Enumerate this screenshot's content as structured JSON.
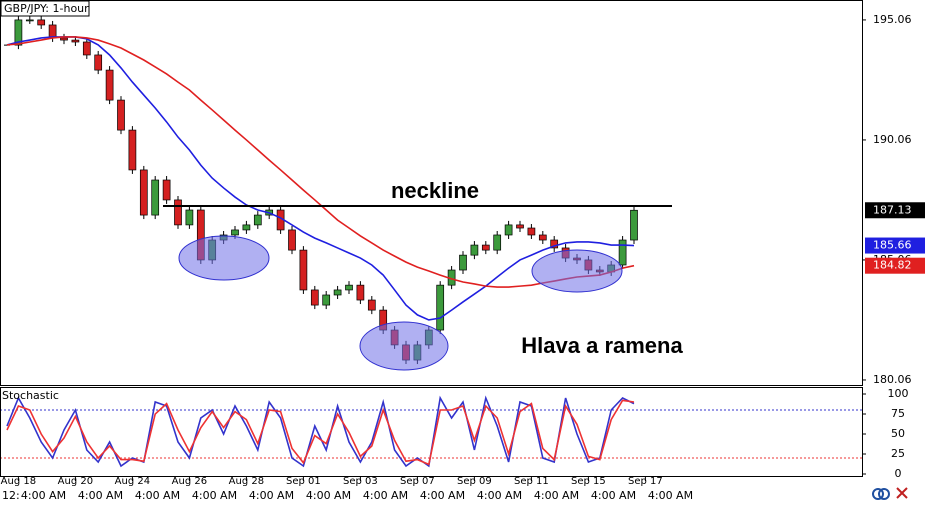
{
  "chart_data": [
    {
      "type": "candlestick",
      "title": "GBP/JPY: 1-hour",
      "categories": [
        null,
        "Aug 18",
        null,
        null,
        null,
        null,
        "Aug 20",
        null,
        null,
        null,
        null,
        "Aug 24",
        null,
        null,
        null,
        null,
        "Aug 26",
        null,
        null,
        null,
        null,
        "Aug 28",
        null,
        null,
        null,
        null,
        "Sep 01",
        null,
        null,
        null,
        null,
        "Sep 03",
        null,
        null,
        null,
        null,
        "Sep 07",
        null,
        null,
        null,
        null,
        "Sep 09",
        null,
        null,
        null,
        null,
        "Sep 11",
        null,
        null,
        null,
        null,
        "Sep 15",
        null,
        null,
        null,
        null,
        "Sep 17"
      ],
      "time_labels": [
        "12:",
        "4:00 AM",
        "4:00 AM",
        "4:00 AM",
        "4:00 AM",
        "4:00 AM",
        "4:00 AM",
        "4:00 AM",
        "4:00 AM",
        "4:00 AM",
        "4:00 AM",
        "4:00 AM",
        "4:00 AM"
      ],
      "series": [
        {
          "color": "#3c9a3c",
          "down_color": "#d42020",
          "values": [
            194.01,
            195.06,
            195.06,
            194.85,
            194.31,
            194.22,
            194.14,
            193.6,
            192.97,
            191.72,
            190.47,
            188.81,
            186.93,
            188.39,
            187.56,
            186.52,
            187.14,
            185.06,
            185.89,
            186.1,
            186.31,
            186.52,
            186.93,
            187.14,
            186.31,
            185.47,
            183.81,
            183.18,
            183.6,
            183.81,
            184.01,
            183.39,
            182.97,
            182.14,
            181.52,
            180.89,
            181.52,
            182.14,
            184.01,
            184.64,
            185.26,
            185.68,
            185.47,
            186.1,
            186.52,
            186.39,
            186.1,
            185.89,
            185.56,
            185.14,
            185.06,
            184.64,
            184.56,
            184.85,
            185.89,
            187.13,
            null
          ]
        },
        {
          "color": "#1f1fe0",
          "values": [
            194.02,
            194.14,
            194.22,
            194.31,
            194.35,
            194.35,
            194.35,
            194.27,
            194.02,
            193.6,
            193.06,
            192.47,
            191.93,
            191.39,
            190.81,
            190.18,
            189.64,
            189.01,
            188.47,
            188.06,
            187.68,
            187.35,
            187.14,
            187.02,
            186.81,
            186.52,
            186.22,
            185.97,
            185.77,
            185.56,
            185.35,
            185.14,
            184.85,
            184.43,
            183.81,
            183.18,
            182.77,
            182.56,
            182.64,
            182.97,
            183.31,
            183.64,
            183.97,
            184.35,
            184.72,
            185.06,
            185.26,
            185.47,
            185.64,
            185.77,
            185.81,
            185.81,
            185.77,
            185.68,
            185.68,
            185.66,
            null
          ]
        },
        {
          "color": "#e02020",
          "values": [
            194.02,
            194.06,
            194.14,
            194.22,
            194.31,
            194.35,
            194.35,
            194.31,
            194.22,
            194.06,
            193.89,
            193.64,
            193.39,
            193.1,
            192.81,
            192.47,
            192.14,
            191.72,
            191.31,
            190.89,
            190.47,
            190.06,
            189.64,
            189.22,
            188.81,
            188.39,
            187.97,
            187.56,
            187.14,
            186.72,
            186.39,
            186.06,
            185.77,
            185.47,
            185.22,
            184.97,
            184.76,
            184.6,
            184.43,
            184.27,
            184.14,
            184.06,
            183.97,
            183.93,
            183.93,
            183.97,
            184.01,
            184.1,
            184.18,
            184.27,
            184.35,
            184.39,
            184.43,
            184.56,
            184.72,
            184.82,
            null
          ]
        }
      ],
      "ylim": [
        179.85,
        195.89
      ],
      "yticks": [
        195.06,
        190.06,
        185.06,
        180.06
      ],
      "annotations": {
        "neckline": "neckline",
        "pattern": "Hlava a ramena"
      }
    },
    {
      "type": "line",
      "title": "Stochastic",
      "series": [
        {
          "color": "#3333cc",
          "values": [
            60,
            95,
            70,
            40,
            20,
            55,
            80,
            30,
            15,
            40,
            10,
            20,
            15,
            90,
            85,
            40,
            20,
            70,
            80,
            50,
            85,
            60,
            30,
            90,
            70,
            20,
            10,
            60,
            30,
            85,
            40,
            15,
            40,
            90,
            30,
            10,
            20,
            10,
            95,
            70,
            90,
            30,
            95,
            60,
            15,
            90,
            85,
            20,
            15,
            95,
            50,
            15,
            20,
            80,
            95,
            88,
            null
          ]
        },
        {
          "color": "#ee3333",
          "values": [
            55,
            85,
            80,
            50,
            28,
            45,
            72,
            40,
            20,
            35,
            18,
            18,
            16,
            75,
            88,
            55,
            28,
            58,
            78,
            58,
            78,
            68,
            38,
            80,
            78,
            32,
            14,
            48,
            38,
            75,
            52,
            22,
            35,
            80,
            42,
            16,
            18,
            12,
            80,
            80,
            85,
            42,
            85,
            70,
            25,
            78,
            88,
            32,
            18,
            85,
            62,
            22,
            18,
            68,
            92,
            90,
            null
          ]
        }
      ],
      "levels": [
        {
          "value": 80,
          "color": "#3333cc"
        },
        {
          "value": 20,
          "color": "#ee3333"
        }
      ],
      "ylim": [
        -3.75,
        108.75
      ],
      "yticks": [
        100,
        75,
        50,
        25,
        0
      ]
    }
  ]
}
